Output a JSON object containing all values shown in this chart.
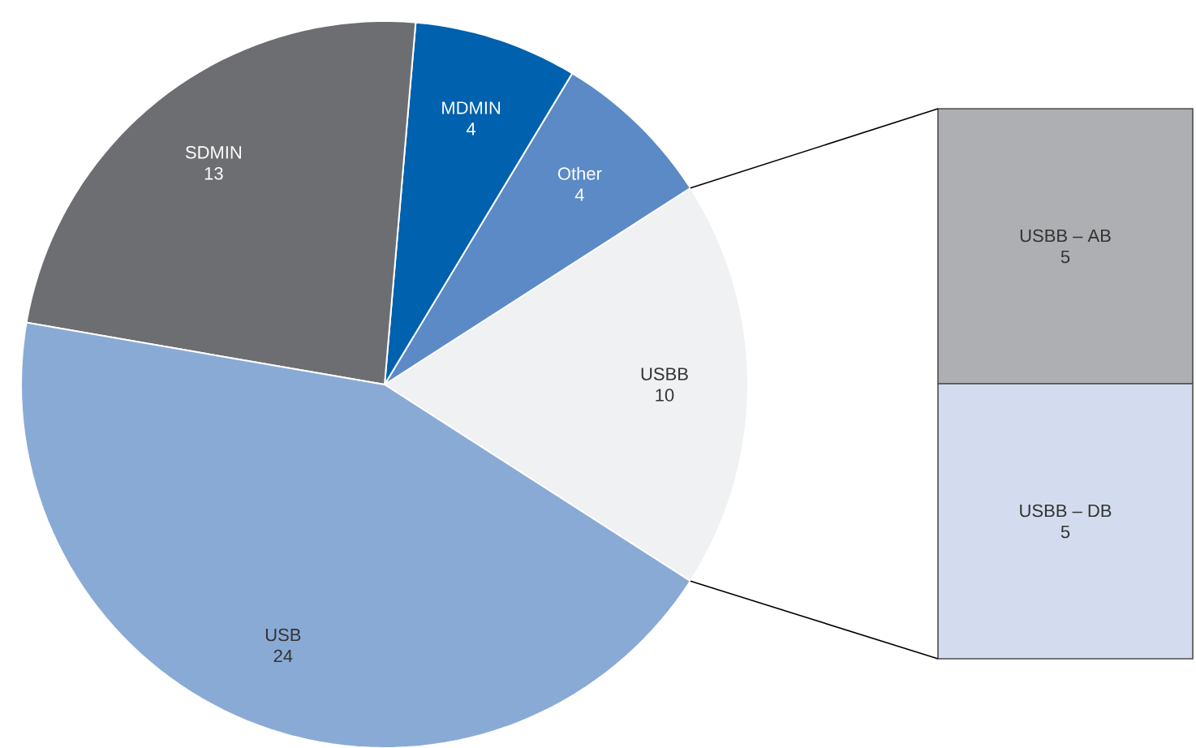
{
  "chart_data": [
    {
      "type": "pie",
      "categories": [
        "USBB",
        "Other",
        "MDMIN",
        "SDMIN",
        "USB"
      ],
      "values": [
        10,
        4,
        4,
        13,
        24
      ],
      "colors": [
        "#f0f1f3",
        "#5b8ac6",
        "#0061ae",
        "#6d6e71",
        "#8aaad6"
      ],
      "data_labels": true
    },
    {
      "type": "bar",
      "stacked": true,
      "categories": [
        null
      ],
      "data_labels": true,
      "series": [
        {
          "name": "USBB – DB",
          "color": "#d3dcef",
          "values": [
            5
          ]
        },
        {
          "name": "USBB – AB",
          "color": "#aeafb2",
          "values": [
            5
          ]
        }
      ]
    }
  ]
}
